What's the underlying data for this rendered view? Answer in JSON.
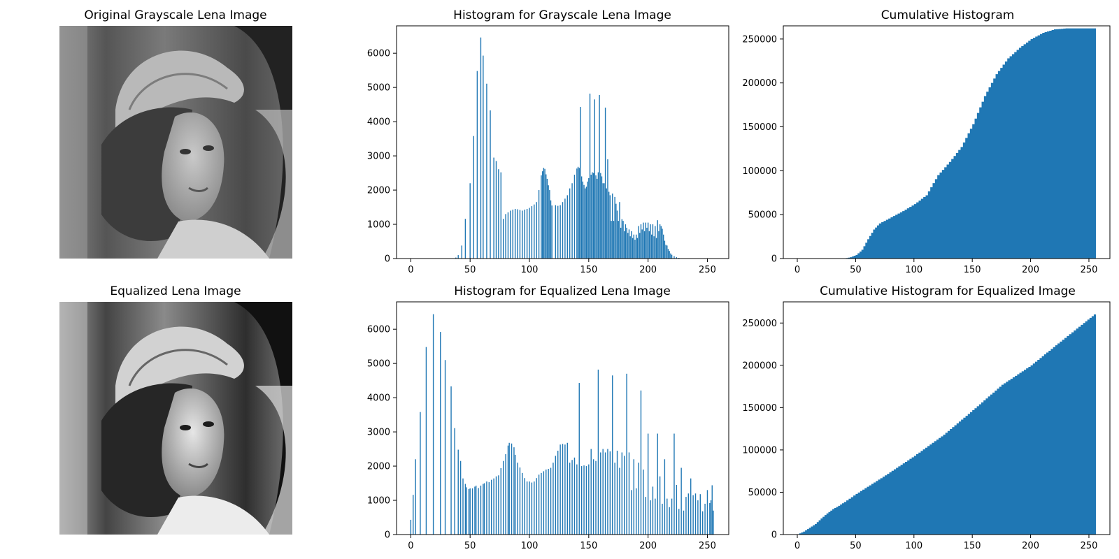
{
  "image_panels": {
    "top": {
      "title": "Original Grayscale Lena Image"
    },
    "bottom": {
      "title": "Equalized Lena Image"
    }
  },
  "chart_data": [
    {
      "id": "hist_orig",
      "type": "bar",
      "title": "Histogram for Grayscale Lena Image",
      "xlabel": "",
      "ylabel": "",
      "xlim": [
        -12,
        268
      ],
      "ylim": [
        0,
        6800
      ],
      "xticks": [
        0,
        50,
        100,
        150,
        200,
        250
      ],
      "yticks": [
        0,
        1000,
        2000,
        3000,
        4000,
        5000,
        6000
      ],
      "color": "#1f77b4",
      "bins": [
        [
          38,
          30
        ],
        [
          40,
          100
        ],
        [
          43,
          380
        ],
        [
          46,
          1160
        ],
        [
          50,
          2200
        ],
        [
          53,
          3580
        ],
        [
          56,
          5480
        ],
        [
          59,
          6460
        ],
        [
          61,
          5930
        ],
        [
          64,
          5110
        ],
        [
          67,
          4330
        ],
        [
          70,
          2950
        ],
        [
          72,
          2850
        ],
        [
          74,
          2610
        ],
        [
          76,
          2520
        ],
        [
          78,
          1160
        ],
        [
          80,
          1300
        ],
        [
          82,
          1350
        ],
        [
          84,
          1400
        ],
        [
          86,
          1430
        ],
        [
          88,
          1450
        ],
        [
          90,
          1440
        ],
        [
          92,
          1420
        ],
        [
          94,
          1400
        ],
        [
          96,
          1430
        ],
        [
          98,
          1450
        ],
        [
          100,
          1480
        ],
        [
          102,
          1530
        ],
        [
          104,
          1580
        ],
        [
          106,
          1650
        ],
        [
          108,
          2000
        ],
        [
          110,
          2430
        ],
        [
          111,
          2550
        ],
        [
          112,
          2650
        ],
        [
          113,
          2620
        ],
        [
          114,
          2460
        ],
        [
          115,
          2330
        ],
        [
          116,
          2140
        ],
        [
          117,
          2000
        ],
        [
          118,
          1700
        ],
        [
          119,
          1550
        ],
        [
          122,
          1560
        ],
        [
          124,
          1540
        ],
        [
          126,
          1560
        ],
        [
          128,
          1650
        ],
        [
          130,
          1750
        ],
        [
          132,
          1850
        ],
        [
          134,
          2050
        ],
        [
          136,
          2200
        ],
        [
          138,
          2450
        ],
        [
          140,
          2630
        ],
        [
          141,
          2680
        ],
        [
          142,
          2650
        ],
        [
          143,
          4430
        ],
        [
          144,
          2400
        ],
        [
          145,
          2250
        ],
        [
          146,
          2150
        ],
        [
          147,
          2050
        ],
        [
          148,
          2100
        ],
        [
          149,
          2250
        ],
        [
          150,
          2350
        ],
        [
          151,
          4820
        ],
        [
          152,
          2450
        ],
        [
          153,
          2520
        ],
        [
          154,
          2500
        ],
        [
          155,
          4650
        ],
        [
          156,
          2430
        ],
        [
          157,
          2330
        ],
        [
          158,
          2520
        ],
        [
          159,
          4780
        ],
        [
          160,
          2500
        ],
        [
          161,
          2400
        ],
        [
          162,
          2200
        ],
        [
          163,
          2200
        ],
        [
          164,
          4410
        ],
        [
          165,
          2050
        ],
        [
          166,
          2900
        ],
        [
          167,
          1950
        ],
        [
          168,
          1850
        ],
        [
          169,
          1100
        ],
        [
          170,
          1900
        ],
        [
          171,
          1100
        ],
        [
          172,
          1800
        ],
        [
          173,
          1600
        ],
        [
          174,
          1400
        ],
        [
          175,
          1100
        ],
        [
          176,
          1650
        ],
        [
          177,
          900
        ],
        [
          178,
          1150
        ],
        [
          179,
          1100
        ],
        [
          180,
          800
        ],
        [
          181,
          1000
        ],
        [
          182,
          900
        ],
        [
          183,
          750
        ],
        [
          184,
          850
        ],
        [
          185,
          650
        ],
        [
          186,
          800
        ],
        [
          187,
          600
        ],
        [
          188,
          700
        ],
        [
          189,
          550
        ],
        [
          190,
          700
        ],
        [
          191,
          600
        ],
        [
          192,
          950
        ],
        [
          193,
          750
        ],
        [
          194,
          1000
        ],
        [
          195,
          850
        ],
        [
          196,
          1050
        ],
        [
          197,
          800
        ],
        [
          198,
          1050
        ],
        [
          199,
          900
        ],
        [
          200,
          1050
        ],
        [
          201,
          800
        ],
        [
          202,
          1000
        ],
        [
          203,
          700
        ],
        [
          204,
          1000
        ],
        [
          205,
          650
        ],
        [
          206,
          950
        ],
        [
          207,
          600
        ],
        [
          208,
          1120
        ],
        [
          209,
          800
        ],
        [
          210,
          1000
        ],
        [
          211,
          950
        ],
        [
          212,
          870
        ],
        [
          213,
          700
        ],
        [
          214,
          520
        ],
        [
          215,
          400
        ],
        [
          216,
          380
        ],
        [
          217,
          280
        ],
        [
          218,
          220
        ],
        [
          219,
          150
        ],
        [
          220,
          110
        ],
        [
          222,
          70
        ],
        [
          224,
          40
        ],
        [
          226,
          20
        ],
        [
          228,
          10
        ]
      ]
    },
    {
      "id": "cum_orig",
      "type": "area",
      "title": "Cumulative Histogram",
      "xlabel": "",
      "ylabel": "",
      "xlim": [
        -12,
        268
      ],
      "ylim": [
        0,
        265000
      ],
      "xticks": [
        0,
        50,
        100,
        150,
        200,
        250
      ],
      "yticks": [
        0,
        50000,
        100000,
        150000,
        200000,
        250000
      ],
      "color": "#1f77b4",
      "points": [
        [
          0,
          0
        ],
        [
          40,
          100
        ],
        [
          45,
          1500
        ],
        [
          50,
          4000
        ],
        [
          55,
          10000
        ],
        [
          60,
          22000
        ],
        [
          65,
          33000
        ],
        [
          70,
          40000
        ],
        [
          80,
          47000
        ],
        [
          90,
          54000
        ],
        [
          100,
          62000
        ],
        [
          110,
          72000
        ],
        [
          120,
          95000
        ],
        [
          130,
          110000
        ],
        [
          140,
          127000
        ],
        [
          150,
          153000
        ],
        [
          160,
          185000
        ],
        [
          170,
          210000
        ],
        [
          180,
          228000
        ],
        [
          190,
          240000
        ],
        [
          200,
          250000
        ],
        [
          210,
          257000
        ],
        [
          220,
          261000
        ],
        [
          230,
          262100
        ],
        [
          256,
          262144
        ]
      ]
    },
    {
      "id": "hist_eq",
      "type": "bar",
      "title": "Histogram for Equalized Lena Image",
      "xlabel": "",
      "ylabel": "",
      "xlim": [
        -12,
        268
      ],
      "ylim": [
        0,
        6800
      ],
      "xticks": [
        0,
        50,
        100,
        150,
        200,
        250
      ],
      "yticks": [
        0,
        1000,
        2000,
        3000,
        4000,
        5000,
        6000
      ],
      "color": "#1f77b4",
      "bins": [
        [
          0,
          430
        ],
        [
          2,
          1160
        ],
        [
          4,
          2200
        ],
        [
          8,
          3580
        ],
        [
          13,
          5480
        ],
        [
          19,
          6440
        ],
        [
          25,
          5920
        ],
        [
          29,
          5100
        ],
        [
          34,
          4330
        ],
        [
          37,
          3110
        ],
        [
          40,
          2480
        ],
        [
          42,
          2150
        ],
        [
          44,
          1640
        ],
        [
          46,
          1480
        ],
        [
          47,
          1380
        ],
        [
          49,
          1330
        ],
        [
          50,
          1350
        ],
        [
          52,
          1350
        ],
        [
          54,
          1400
        ],
        [
          55,
          1430
        ],
        [
          57,
          1360
        ],
        [
          59,
          1430
        ],
        [
          61,
          1480
        ],
        [
          62,
          1500
        ],
        [
          64,
          1550
        ],
        [
          66,
          1530
        ],
        [
          68,
          1600
        ],
        [
          70,
          1640
        ],
        [
          72,
          1700
        ],
        [
          74,
          1730
        ],
        [
          76,
          1940
        ],
        [
          78,
          2150
        ],
        [
          80,
          2350
        ],
        [
          82,
          2600
        ],
        [
          83,
          2680
        ],
        [
          85,
          2660
        ],
        [
          87,
          2550
        ],
        [
          88,
          2330
        ],
        [
          90,
          2100
        ],
        [
          92,
          1960
        ],
        [
          94,
          1800
        ],
        [
          96,
          1650
        ],
        [
          98,
          1550
        ],
        [
          100,
          1550
        ],
        [
          102,
          1520
        ],
        [
          104,
          1550
        ],
        [
          106,
          1650
        ],
        [
          108,
          1750
        ],
        [
          110,
          1800
        ],
        [
          112,
          1850
        ],
        [
          114,
          1900
        ],
        [
          116,
          1920
        ],
        [
          118,
          1950
        ],
        [
          120,
          2100
        ],
        [
          122,
          2300
        ],
        [
          124,
          2450
        ],
        [
          126,
          2630
        ],
        [
          128,
          2650
        ],
        [
          130,
          2630
        ],
        [
          132,
          2680
        ],
        [
          134,
          2100
        ],
        [
          136,
          2180
        ],
        [
          138,
          2250
        ],
        [
          140,
          2050
        ],
        [
          142,
          4430
        ],
        [
          144,
          2000
        ],
        [
          146,
          2020
        ],
        [
          148,
          2000
        ],
        [
          150,
          2050
        ],
        [
          152,
          2500
        ],
        [
          154,
          2200
        ],
        [
          156,
          2150
        ],
        [
          158,
          4820
        ],
        [
          160,
          2400
        ],
        [
          162,
          2500
        ],
        [
          164,
          2400
        ],
        [
          166,
          2500
        ],
        [
          168,
          2430
        ],
        [
          170,
          4650
        ],
        [
          172,
          2100
        ],
        [
          174,
          2450
        ],
        [
          176,
          1950
        ],
        [
          178,
          2400
        ],
        [
          180,
          2300
        ],
        [
          182,
          4700
        ],
        [
          184,
          2400
        ],
        [
          186,
          1300
        ],
        [
          188,
          2200
        ],
        [
          190,
          1350
        ],
        [
          192,
          2100
        ],
        [
          194,
          4210
        ],
        [
          196,
          1900
        ],
        [
          198,
          1100
        ],
        [
          200,
          2950
        ],
        [
          202,
          1000
        ],
        [
          204,
          1400
        ],
        [
          206,
          1050
        ],
        [
          208,
          2950
        ],
        [
          210,
          1700
        ],
        [
          212,
          900
        ],
        [
          214,
          2200
        ],
        [
          216,
          1050
        ],
        [
          218,
          800
        ],
        [
          220,
          1050
        ],
        [
          222,
          2950
        ],
        [
          224,
          1450
        ],
        [
          226,
          750
        ],
        [
          228,
          1950
        ],
        [
          230,
          700
        ],
        [
          232,
          1100
        ],
        [
          234,
          1200
        ],
        [
          236,
          1640
        ],
        [
          238,
          1150
        ],
        [
          240,
          1200
        ],
        [
          242,
          1000
        ],
        [
          244,
          1180
        ],
        [
          246,
          680
        ],
        [
          248,
          900
        ],
        [
          250,
          1300
        ],
        [
          252,
          920
        ],
        [
          253,
          1000
        ],
        [
          254,
          1440
        ],
        [
          255,
          700
        ]
      ]
    },
    {
      "id": "cum_eq",
      "type": "area",
      "title": "Cumulative Histogram for Equalized Image",
      "xlabel": "",
      "ylabel": "",
      "xlim": [
        -12,
        268
      ],
      "ylim": [
        0,
        275000
      ],
      "xticks": [
        0,
        50,
        100,
        150,
        200,
        250
      ],
      "yticks": [
        0,
        50000,
        100000,
        150000,
        200000,
        250000
      ],
      "color": "#1f77b4",
      "points": [
        [
          0,
          400
        ],
        [
          5,
          3500
        ],
        [
          10,
          8000
        ],
        [
          15,
          12500
        ],
        [
          20,
          19000
        ],
        [
          25,
          25000
        ],
        [
          30,
          30000
        ],
        [
          35,
          34000
        ],
        [
          40,
          38500
        ],
        [
          50,
          48000
        ],
        [
          75,
          70000
        ],
        [
          100,
          93000
        ],
        [
          125,
          118000
        ],
        [
          150,
          147000
        ],
        [
          175,
          177000
        ],
        [
          200,
          200000
        ],
        [
          225,
          228000
        ],
        [
          245,
          250000
        ],
        [
          256,
          262144
        ]
      ]
    }
  ]
}
